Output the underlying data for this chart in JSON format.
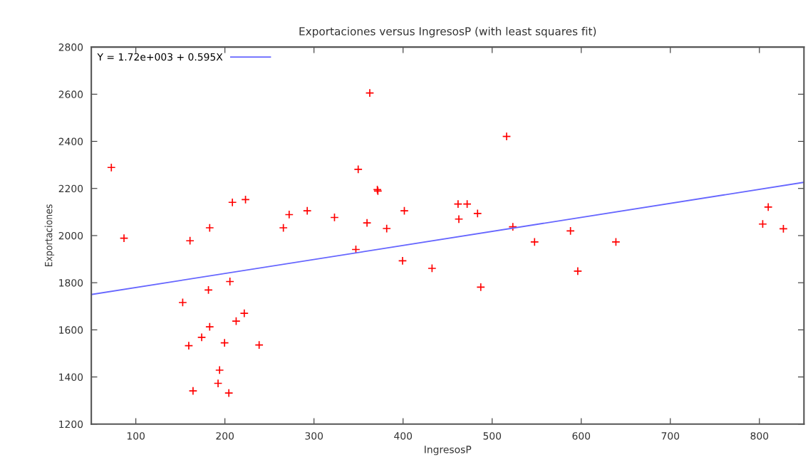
{
  "chart_data": {
    "type": "scatter",
    "title": "Exportaciones versus IngresosP (with least squares fit)",
    "xlabel": "IngresosP",
    "ylabel": "Exportaciones",
    "xlim": [
      50,
      850
    ],
    "xticks": [
      100,
      200,
      300,
      400,
      500,
      600,
      700,
      800
    ],
    "ylim": [
      1200,
      2800
    ],
    "yticks": [
      1200,
      1400,
      1600,
      1800,
      2000,
      2200,
      2400,
      2600,
      2800
    ],
    "grid": false,
    "legend": "top left",
    "series": [
      {
        "color": "#ff0000",
        "marker": "cross",
        "x": [
          72.5,
          86.7,
          160.8,
          182.9,
          208.4,
          223.1,
          272.1,
          292.4,
          265.6,
          323,
          349.6,
          362.6,
          371.1,
          371.7,
          359.5,
          381.6,
          401.4,
          347,
          399.4,
          432.5,
          205.6,
          181.5,
          152.6,
          221.7,
          212.6,
          182.9,
          173.9,
          159.4,
          199.6,
          238.4,
          194,
          192.3,
          164.2,
          204.4,
          461.7,
          471.9,
          462.6,
          483.6,
          516.2,
          487.2,
          523.2,
          547.6,
          587.9,
          596.1,
          638.9,
          803.7,
          809.9,
          826.9
        ],
        "values": [
          2289,
          1989,
          1978,
          2033,
          2141,
          2153,
          2089,
          2105,
          2033,
          2077,
          2281,
          2605,
          2195,
          2189,
          2054,
          2030,
          2105,
          1941,
          1893,
          1861,
          1805,
          1769,
          1716,
          1670,
          1637,
          1613,
          1568,
          1533,
          1545,
          1536,
          1429,
          1373,
          1341,
          1332,
          2134,
          2134,
          2070,
          2094,
          2421,
          1781,
          2037,
          1973,
          2020,
          1849,
          1973,
          2049,
          2121,
          2029
        ]
      },
      {
        "type": "line",
        "name": "Y = 1.72e+003 + 0.595X",
        "color": "#6666ff",
        "marker": "none",
        "line_style": "solid",
        "x": [
          50,
          850
        ],
        "values": [
          1750,
          2226
        ]
      }
    ]
  }
}
